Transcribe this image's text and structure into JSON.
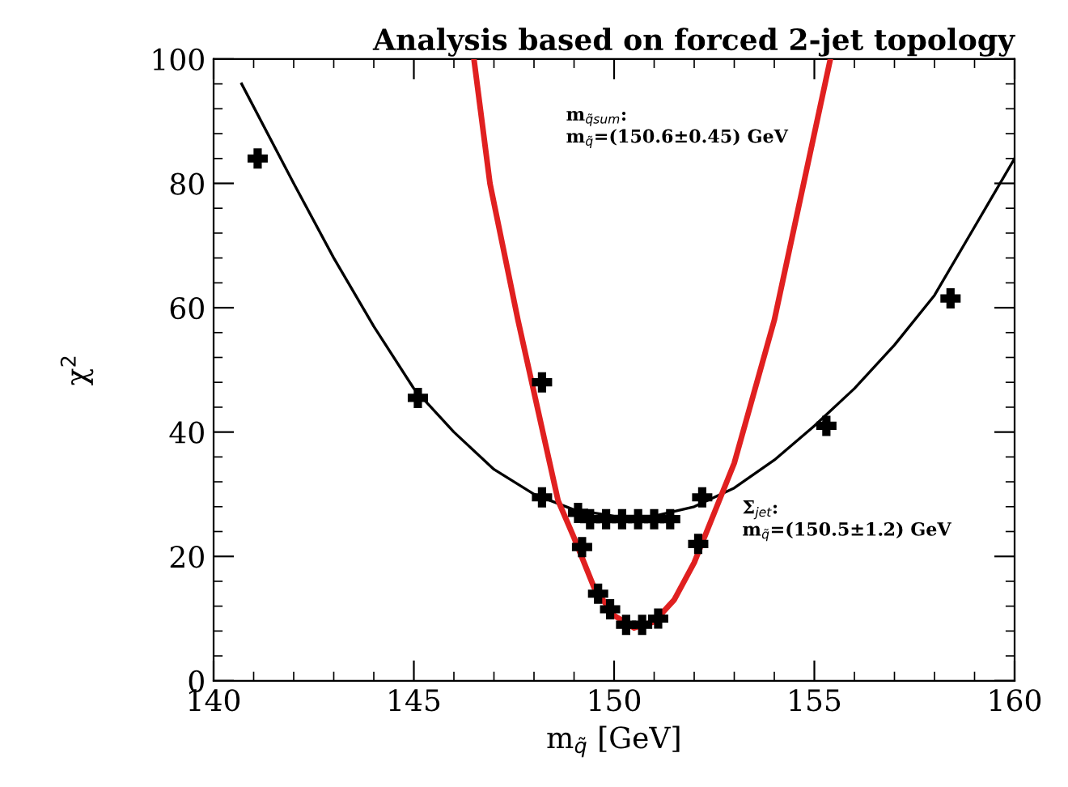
{
  "chart_data": {
    "type": "line",
    "title": "Analysis based on forced 2-jet topology",
    "xlabel": "m$_{q̃}$ [GeV]",
    "ylabel": "χ$^{2}$",
    "xlim": [
      140,
      160
    ],
    "ylim": [
      0,
      100
    ],
    "xticks": [
      140,
      145,
      150,
      155,
      160
    ],
    "yticks": [
      0,
      20,
      40,
      60,
      80,
      100
    ],
    "grid": false,
    "legend": false,
    "series": [
      {
        "type": "scatter",
        "marker": "cross",
        "color": "#000000",
        "x": [
          141.1,
          145.1,
          148.2,
          149.1,
          149.4,
          149.8,
          150.2,
          150.6,
          151.0,
          151.4,
          152.2,
          155.3,
          158.4
        ],
        "values": [
          84,
          45.5,
          29.5,
          27,
          26,
          26,
          26,
          26,
          26,
          26,
          29.5,
          41,
          61.5
        ]
      },
      {
        "type": "scatter",
        "marker": "cross",
        "color": "#000000",
        "x": [
          148.2,
          149.2,
          149.6,
          149.9,
          150.3,
          150.7,
          151.1,
          152.1
        ],
        "values": [
          48,
          21.5,
          14,
          11.5,
          9,
          9,
          10,
          22
        ]
      },
      {
        "color": "#000000",
        "x": [
          140.7,
          142,
          143,
          144,
          145,
          146,
          147,
          148,
          149,
          150,
          151,
          152,
          153,
          154,
          155,
          156,
          157,
          158,
          159,
          160
        ],
        "values": [
          96,
          80,
          68,
          57,
          47,
          40,
          34,
          30,
          27.5,
          26.5,
          26.5,
          28,
          31,
          35.5,
          41,
          47,
          54,
          62,
          73,
          84
        ]
      },
      {
        "color": "#e02020",
        "x": [
          146.5,
          146.9,
          147.6,
          148.6,
          149,
          149.5,
          150,
          150.5,
          151,
          151.5,
          152,
          152.5,
          153,
          154,
          155.4
        ],
        "values": [
          100,
          80,
          58,
          29,
          23,
          15,
          10.5,
          8.5,
          9.5,
          13,
          19,
          27,
          35,
          58,
          100
        ]
      }
    ],
    "annotations": [
      "m$_{q̃sum}$:\nm$_{q̃}$=(150.6±0.45) GeV",
      "Σ$_{jet}$:\nm$_{q̃}$=(150.5±1.2) GeV"
    ]
  }
}
